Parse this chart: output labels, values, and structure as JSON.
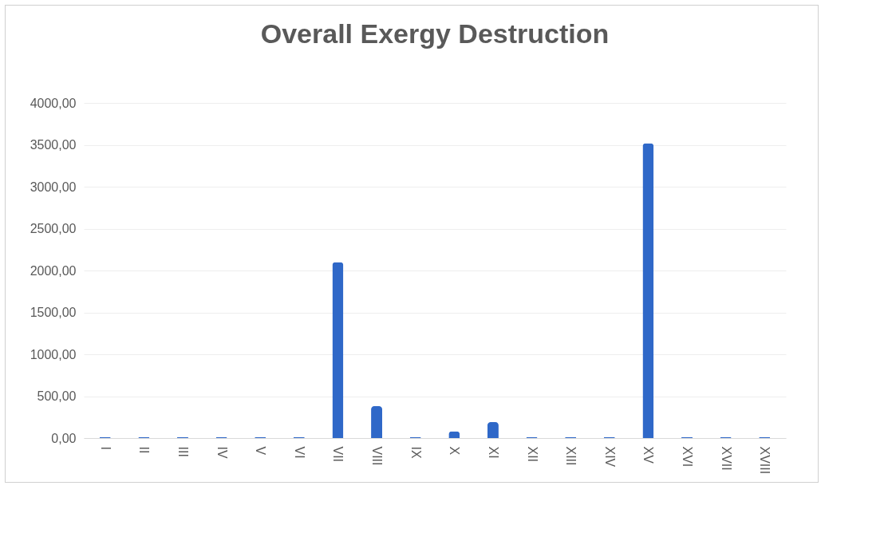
{
  "chart_data": {
    "type": "bar",
    "title": "Overall  Exergy Destruction",
    "categories": [
      "I",
      "II",
      "III",
      "IV",
      "V",
      "VI",
      "VII",
      "VIII",
      "IX",
      "X",
      "XI",
      "XII",
      "XIII",
      "XIV",
      "XV",
      "XVI",
      "XVII",
      "XVIII"
    ],
    "values": [
      10,
      10,
      10,
      10,
      10,
      10,
      2100,
      380,
      10,
      80,
      190,
      10,
      10,
      10,
      3520,
      10,
      10,
      10
    ],
    "color": "#2f68c8",
    "ylim": [
      0,
      4000
    ],
    "yticks": [
      {
        "value": 0,
        "label": "0,00"
      },
      {
        "value": 500,
        "label": "500,00"
      },
      {
        "value": 1000,
        "label": "1000,00"
      },
      {
        "value": 1500,
        "label": "1500,00"
      },
      {
        "value": 2000,
        "label": "2000,00"
      },
      {
        "value": 2500,
        "label": "2500,00"
      },
      {
        "value": 3000,
        "label": "3000,00"
      },
      {
        "value": 3500,
        "label": "3500,00"
      },
      {
        "value": 4000,
        "label": "4000,00"
      }
    ],
    "grid": "y"
  }
}
